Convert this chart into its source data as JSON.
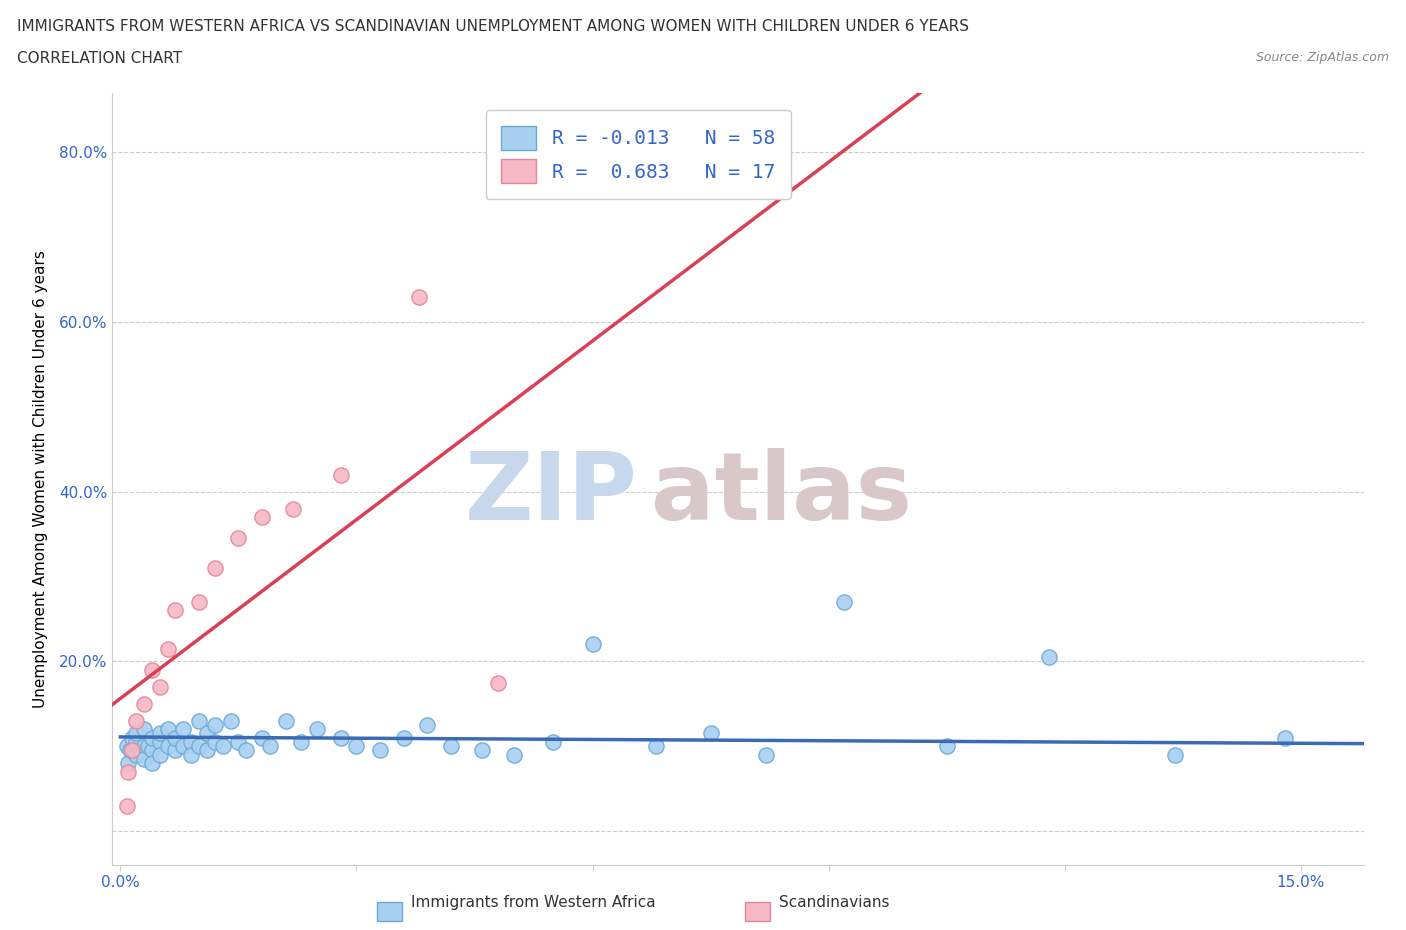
{
  "title_line1": "IMMIGRANTS FROM WESTERN AFRICA VS SCANDINAVIAN UNEMPLOYMENT AMONG WOMEN WITH CHILDREN UNDER 6 YEARS",
  "title_line2": "CORRELATION CHART",
  "source_text": "Source: ZipAtlas.com",
  "ylabel": "Unemployment Among Women with Children Under 6 years",
  "xlim": [
    -0.001,
    0.158
  ],
  "ylim": [
    -0.04,
    0.87
  ],
  "blue_color": "#A8D0F0",
  "pink_color": "#F5B8C4",
  "blue_edge": "#6BAAD8",
  "pink_edge": "#E8849A",
  "trendline_blue_color": "#3B6BB5",
  "trendline_pink_color": "#D94055",
  "trendline_dashed_color": "#CCAAAA",
  "legend_label_blue": "Immigrants from Western Africa",
  "legend_label_pink": "Scandinavians",
  "R_blue": -0.013,
  "N_blue": 58,
  "R_pink": 0.683,
  "N_pink": 17,
  "blue_x": [
    0.0008,
    0.001,
    0.0012,
    0.0015,
    0.002,
    0.002,
    0.002,
    0.003,
    0.003,
    0.003,
    0.0035,
    0.004,
    0.004,
    0.004,
    0.005,
    0.005,
    0.005,
    0.006,
    0.006,
    0.007,
    0.007,
    0.008,
    0.008,
    0.009,
    0.009,
    0.01,
    0.01,
    0.011,
    0.011,
    0.012,
    0.012,
    0.013,
    0.014,
    0.015,
    0.016,
    0.018,
    0.019,
    0.021,
    0.023,
    0.025,
    0.028,
    0.03,
    0.033,
    0.036,
    0.039,
    0.042,
    0.046,
    0.05,
    0.055,
    0.06,
    0.068,
    0.075,
    0.082,
    0.092,
    0.105,
    0.118,
    0.134,
    0.148
  ],
  "blue_y": [
    0.1,
    0.08,
    0.095,
    0.11,
    0.105,
    0.09,
    0.115,
    0.1,
    0.12,
    0.085,
    0.1,
    0.095,
    0.11,
    0.08,
    0.105,
    0.09,
    0.115,
    0.1,
    0.12,
    0.095,
    0.11,
    0.1,
    0.12,
    0.105,
    0.09,
    0.1,
    0.13,
    0.095,
    0.115,
    0.105,
    0.125,
    0.1,
    0.13,
    0.105,
    0.095,
    0.11,
    0.1,
    0.13,
    0.105,
    0.12,
    0.11,
    0.1,
    0.095,
    0.11,
    0.125,
    0.1,
    0.095,
    0.09,
    0.105,
    0.22,
    0.1,
    0.115,
    0.09,
    0.27,
    0.1,
    0.205,
    0.09,
    0.11
  ],
  "pink_x": [
    0.0008,
    0.001,
    0.0015,
    0.002,
    0.003,
    0.004,
    0.005,
    0.006,
    0.007,
    0.01,
    0.012,
    0.015,
    0.018,
    0.022,
    0.028,
    0.038,
    0.048
  ],
  "pink_y": [
    0.03,
    0.07,
    0.095,
    0.13,
    0.15,
    0.19,
    0.17,
    0.215,
    0.26,
    0.27,
    0.31,
    0.345,
    0.37,
    0.38,
    0.42,
    0.63,
    0.175
  ],
  "background_color": "#FFFFFF",
  "grid_color": "#CCCCCC",
  "watermark_text1": "ZIP",
  "watermark_text2": "atlas",
  "watermark_color1": "#C8D8EC",
  "watermark_color2": "#D8C8C8"
}
